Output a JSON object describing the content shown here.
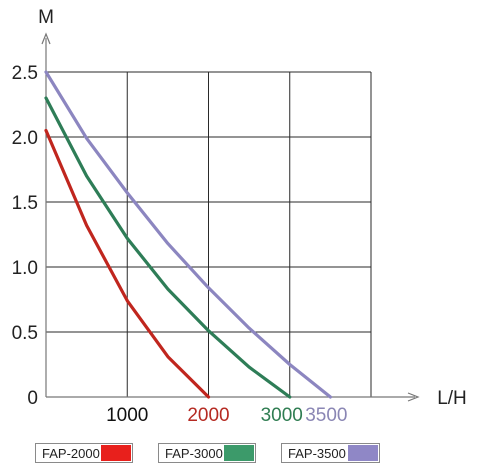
{
  "chart_data": {
    "type": "line",
    "ylabel": "M",
    "xlabel": "L/H",
    "xlim": [
      0,
      4200
    ],
    "ylim": [
      0,
      2.5
    ],
    "y_ticks": [
      "0",
      "0.5",
      "1.0",
      "1.5",
      "2.0",
      "2.5"
    ],
    "x_ticks": [
      {
        "value": 1000,
        "label": "1000",
        "color": "#111111"
      },
      {
        "value": 2000,
        "label": "2000",
        "color": "#b52a22"
      },
      {
        "value": 3000,
        "label": "3000",
        "color": "#2f7d52"
      },
      {
        "value": 3500,
        "label": "3500",
        "color": "#8a86b4"
      }
    ],
    "grid": true,
    "series": [
      {
        "name": "FAP-2000",
        "color": "#c0261e",
        "swatch": "#e8201c",
        "x": [
          0,
          500,
          1000,
          1500,
          2000
        ],
        "y": [
          2.05,
          1.32,
          0.74,
          0.31,
          0
        ]
      },
      {
        "name": "FAP-3000",
        "color": "#2e7d57",
        "swatch": "#3c9a6a",
        "x": [
          0,
          500,
          1000,
          1500,
          2000,
          2500,
          3000
        ],
        "y": [
          2.3,
          1.7,
          1.22,
          0.83,
          0.51,
          0.23,
          0
        ]
      },
      {
        "name": "FAP-3500",
        "color": "#8c86c0",
        "swatch": "#8f87c6",
        "x": [
          0,
          500,
          1000,
          1500,
          2000,
          2500,
          3000,
          3500
        ],
        "y": [
          2.5,
          1.99,
          1.57,
          1.18,
          0.84,
          0.53,
          0.25,
          0
        ]
      }
    ]
  }
}
